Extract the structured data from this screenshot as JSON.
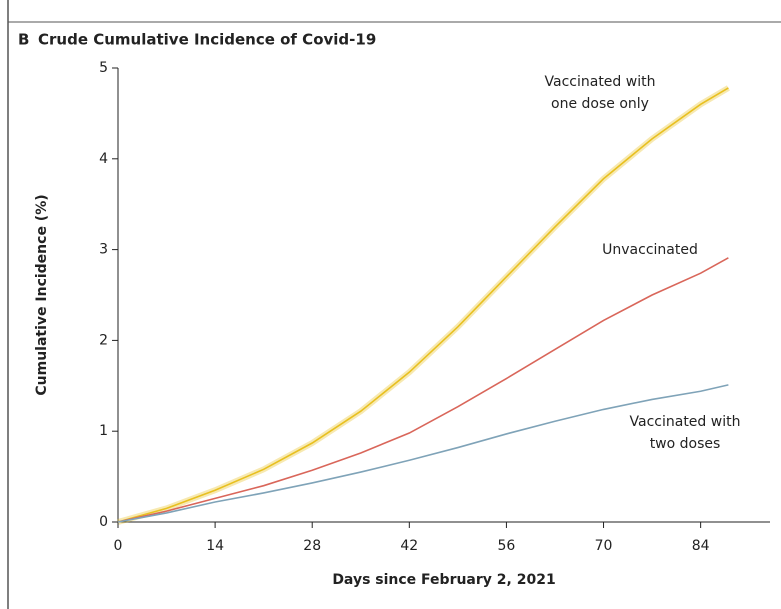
{
  "chart_data": {
    "type": "line",
    "panel_label": "B",
    "title": "Crude Cumulative Incidence of Covid-19",
    "x_label": "Days since February 2, 2021",
    "y_label": "Cumulative Incidence (%)",
    "x": [
      0,
      7,
      14,
      21,
      28,
      35,
      42,
      49,
      56,
      63,
      70,
      77,
      84,
      88
    ],
    "series": [
      {
        "label": [
          "Vaccinated with",
          "one dose only"
        ],
        "color": "#e8c020",
        "values": [
          0,
          0.15,
          0.35,
          0.58,
          0.87,
          1.22,
          1.65,
          2.15,
          2.7,
          3.25,
          3.78,
          4.22,
          4.6,
          4.78
        ]
      },
      {
        "label": [
          "Unvaccinated"
        ],
        "color": "#d9665a",
        "values": [
          0,
          0.12,
          0.26,
          0.4,
          0.57,
          0.76,
          0.98,
          1.27,
          1.58,
          1.9,
          2.22,
          2.5,
          2.74,
          2.91
        ]
      },
      {
        "label": [
          "Vaccinated with",
          "two doses"
        ],
        "color": "#7fa3b8",
        "values": [
          0,
          0.1,
          0.22,
          0.32,
          0.43,
          0.55,
          0.68,
          0.82,
          0.97,
          1.11,
          1.24,
          1.35,
          1.44,
          1.51
        ]
      }
    ],
    "xlim": [
      0,
      94
    ],
    "xticks": [
      0,
      14,
      28,
      42,
      56,
      70,
      84
    ],
    "ylim": [
      0,
      5
    ],
    "yticks": [
      0,
      1,
      2,
      3,
      4,
      5
    ]
  }
}
